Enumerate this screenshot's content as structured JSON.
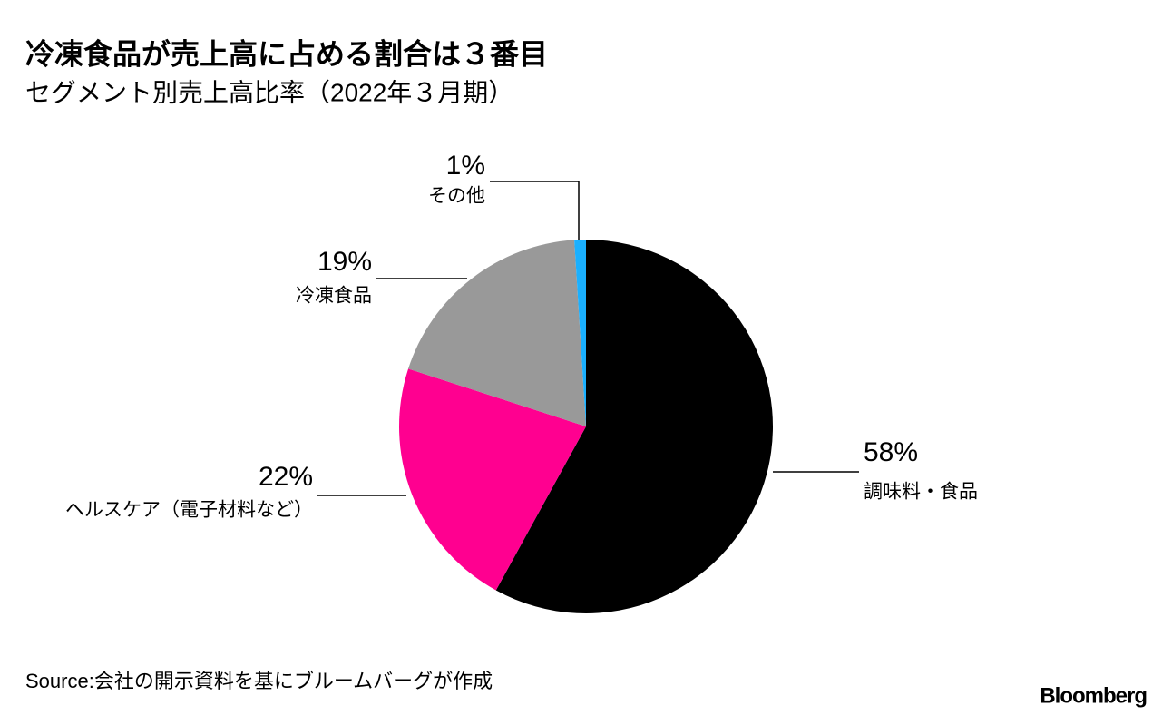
{
  "chart_data": {
    "type": "pie",
    "title": "冷凍食品が売上高に占める割合は３番目",
    "subtitle": "セグメント別売上高比率（2022年３月期）",
    "categories": [
      "調味料・食品",
      "ヘルスケア（電子材料など）",
      "冷凍食品",
      "その他"
    ],
    "values": [
      58,
      22,
      19,
      1
    ],
    "value_labels": [
      "58%",
      "22%",
      "19%",
      "1%"
    ],
    "colors": [
      "#000000",
      "#ff0090",
      "#999999",
      "#1ab0ff"
    ],
    "source": "Source:会社の開示資料を基にブルームバーグが作成",
    "brand": "Bloomberg"
  }
}
